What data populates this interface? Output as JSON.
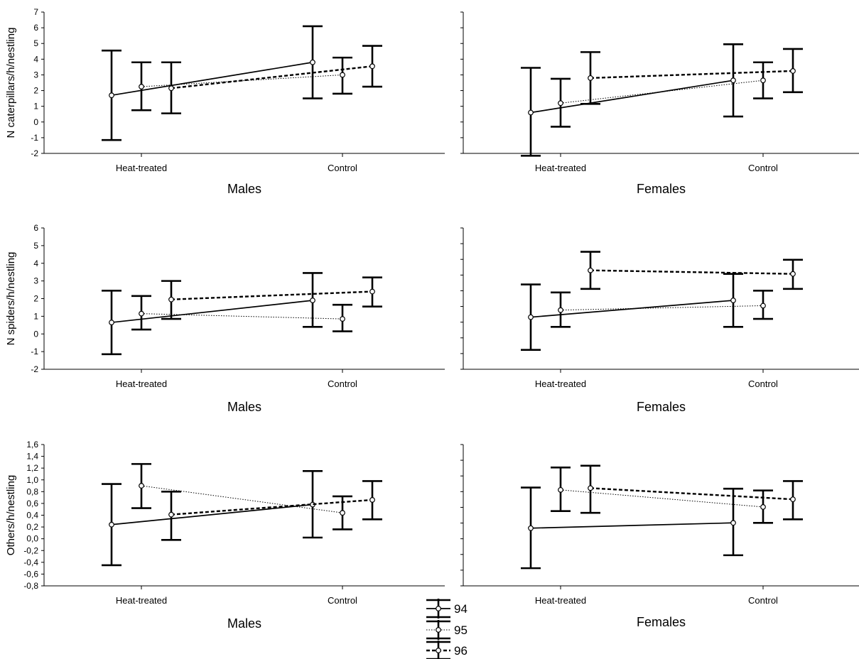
{
  "chart_data": [
    {
      "type": "line",
      "panel": "caterpillars-males",
      "ylabel": "N caterpillars/h/nestling",
      "xlabel": "Males",
      "categories": [
        "Heat-treated",
        "Control"
      ],
      "ylim": [
        -2,
        7
      ],
      "yticks": [
        "-2",
        "-1",
        "0",
        "1",
        "2",
        "3",
        "4",
        "5",
        "6",
        "7"
      ],
      "series": [
        {
          "name": "94",
          "values": [
            1.7,
            3.8
          ],
          "lower": [
            -1.15,
            1.5
          ],
          "upper": [
            4.55,
            6.1
          ]
        },
        {
          "name": "95",
          "values": [
            2.25,
            3.0
          ],
          "lower": [
            0.75,
            1.8
          ],
          "upper": [
            3.8,
            4.1
          ]
        },
        {
          "name": "96",
          "values": [
            2.15,
            3.55
          ],
          "lower": [
            0.55,
            2.25
          ],
          "upper": [
            3.8,
            4.85
          ]
        }
      ]
    },
    {
      "type": "line",
      "panel": "caterpillars-females",
      "ylabel": "",
      "xlabel": "Females",
      "categories": [
        "Heat-treated",
        "Control"
      ],
      "ylim": [
        -2,
        7
      ],
      "yticks": [],
      "series": [
        {
          "name": "94",
          "values": [
            0.6,
            2.65
          ],
          "lower": [
            -2.15,
            0.35
          ],
          "upper": [
            3.45,
            4.95
          ]
        },
        {
          "name": "95",
          "values": [
            1.2,
            2.65
          ],
          "lower": [
            -0.3,
            1.5
          ],
          "upper": [
            2.75,
            3.8
          ]
        },
        {
          "name": "96",
          "values": [
            2.8,
            3.25
          ],
          "lower": [
            1.15,
            1.9
          ],
          "upper": [
            4.45,
            4.65
          ]
        }
      ]
    },
    {
      "type": "line",
      "panel": "spiders-males",
      "ylabel": "N spiders/h/nestling",
      "xlabel": "Males",
      "categories": [
        "Heat-treated",
        "Control"
      ],
      "ylim": [
        -2,
        6
      ],
      "yticks": [
        "-2",
        "-1",
        "0",
        "1",
        "2",
        "3",
        "4",
        "5",
        "6"
      ],
      "series": [
        {
          "name": "94",
          "values": [
            0.65,
            1.9
          ],
          "lower": [
            -1.15,
            0.4
          ],
          "upper": [
            2.45,
            3.45
          ]
        },
        {
          "name": "95",
          "values": [
            1.15,
            0.85
          ],
          "lower": [
            0.25,
            0.15
          ],
          "upper": [
            2.15,
            1.65
          ]
        },
        {
          "name": "96",
          "values": [
            1.95,
            2.4
          ],
          "lower": [
            0.85,
            1.55
          ],
          "upper": [
            3.0,
            3.2
          ]
        }
      ]
    },
    {
      "type": "line",
      "panel": "spiders-females",
      "ylabel": "",
      "xlabel": "Females",
      "categories": [
        "Heat-treated",
        "Control"
      ],
      "ylim": [
        -2,
        6
      ],
      "yticks": [],
      "series": [
        {
          "name": "94",
          "values": [
            0.95,
            1.9
          ],
          "lower": [
            -0.9,
            0.4
          ],
          "upper": [
            2.8,
            3.4
          ]
        },
        {
          "name": "95",
          "values": [
            1.35,
            1.6
          ],
          "lower": [
            0.4,
            0.85
          ],
          "upper": [
            2.35,
            2.45
          ]
        },
        {
          "name": "96",
          "values": [
            3.6,
            3.4
          ],
          "lower": [
            2.55,
            2.55
          ],
          "upper": [
            4.65,
            4.2
          ]
        }
      ]
    },
    {
      "type": "line",
      "panel": "others-males",
      "ylabel": "Others/h/nestling",
      "xlabel": "Males",
      "categories": [
        "Heat-treated",
        "Control"
      ],
      "ylim": [
        -0.8,
        1.6
      ],
      "yticks": [
        "-0,8",
        "-0,6",
        "-0,4",
        "-0,2",
        "0,0",
        "0,2",
        "0,4",
        "0,6",
        "0,8",
        "1,0",
        "1,2",
        "1,4",
        "1,6"
      ],
      "series": [
        {
          "name": "94",
          "values": [
            0.24,
            0.58
          ],
          "lower": [
            -0.45,
            0.02
          ],
          "upper": [
            0.93,
            1.15
          ]
        },
        {
          "name": "95",
          "values": [
            0.9,
            0.44
          ],
          "lower": [
            0.52,
            0.16
          ],
          "upper": [
            1.27,
            0.72
          ]
        },
        {
          "name": "96",
          "values": [
            0.41,
            0.66
          ],
          "lower": [
            -0.02,
            0.33
          ],
          "upper": [
            0.8,
            0.98
          ]
        }
      ]
    },
    {
      "type": "line",
      "panel": "others-females",
      "ylabel": "",
      "xlabel": "Females",
      "categories": [
        "Heat-treated",
        "Control"
      ],
      "ylim": [
        -0.8,
        1.6
      ],
      "yticks": [],
      "series": [
        {
          "name": "94",
          "values": [
            0.18,
            0.27
          ],
          "lower": [
            -0.5,
            -0.28
          ],
          "upper": [
            0.87,
            0.85
          ]
        },
        {
          "name": "95",
          "values": [
            0.83,
            0.54
          ],
          "lower": [
            0.47,
            0.27
          ],
          "upper": [
            1.21,
            0.82
          ]
        },
        {
          "name": "96",
          "values": [
            0.86,
            0.67
          ],
          "lower": [
            0.44,
            0.33
          ],
          "upper": [
            1.24,
            0.98
          ]
        }
      ]
    }
  ],
  "legend": {
    "placement": "bottom-center",
    "items": [
      {
        "label": "94",
        "style": "solid"
      },
      {
        "label": "95",
        "style": "dotted"
      },
      {
        "label": "96",
        "style": "dashed"
      }
    ]
  }
}
